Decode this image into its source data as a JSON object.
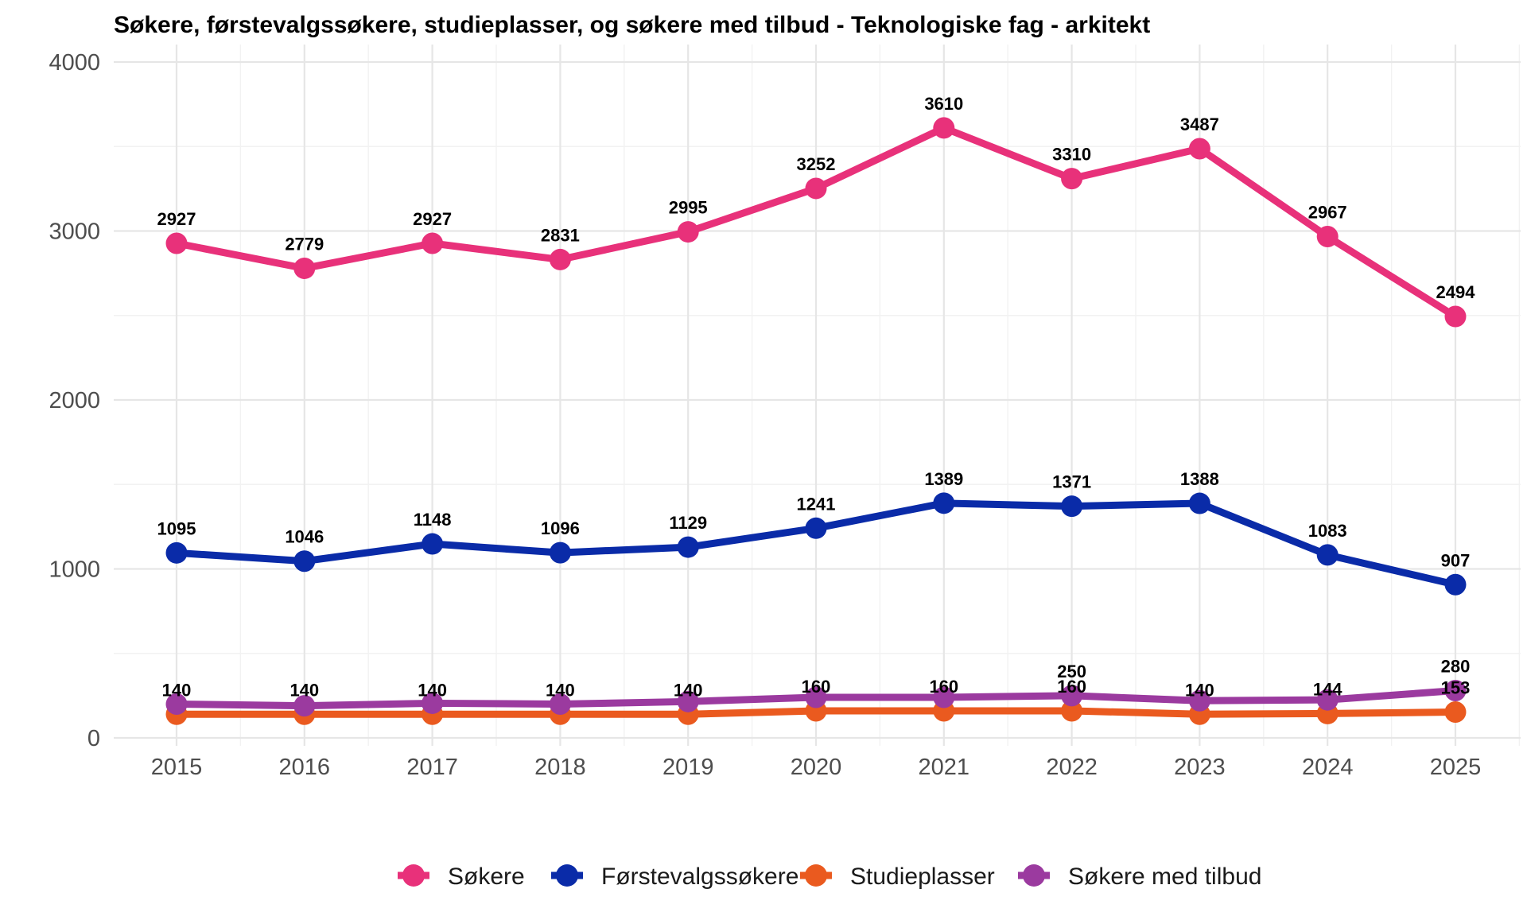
{
  "chart_data": {
    "type": "line",
    "title": "Søkere, førstevalgssøkere, studieplasser, og søkere med tilbud - Teknologiske fag - arkitekt",
    "xlabel": "",
    "ylabel": "",
    "x": [
      2015,
      2016,
      2017,
      2018,
      2019,
      2020,
      2021,
      2022,
      2023,
      2024,
      2025
    ],
    "x_tick_labels": [
      "2015",
      "2016",
      "2017",
      "2018",
      "2019",
      "2020",
      "2021",
      "2022",
      "2023",
      "2024",
      "2025"
    ],
    "ylim": [
      0,
      4000
    ],
    "y_ticks": [
      0,
      1000,
      2000,
      3000,
      4000
    ],
    "y_tick_labels": [
      "0",
      "1000",
      "2000",
      "3000",
      "4000"
    ],
    "grid": true,
    "legend_position": "bottom",
    "series": [
      {
        "name": "Søkere",
        "color": "#E8317A",
        "values": [
          2927,
          2779,
          2927,
          2831,
          2995,
          3252,
          3610,
          3310,
          3487,
          2967,
          2494
        ],
        "labels": [
          2927,
          2779,
          2927,
          2831,
          2995,
          3252,
          3610,
          3310,
          3487,
          2967,
          2494
        ]
      },
      {
        "name": "Førstevalgssøkere",
        "color": "#0A2BA8",
        "values": [
          1095,
          1046,
          1148,
          1096,
          1129,
          1241,
          1389,
          1371,
          1388,
          1083,
          907
        ],
        "labels": [
          1095,
          1046,
          1148,
          1096,
          1129,
          1241,
          1389,
          1371,
          1388,
          1083,
          907
        ]
      },
      {
        "name": "Studieplasser",
        "color": "#EA5A1F",
        "values": [
          140,
          140,
          140,
          140,
          140,
          160,
          160,
          160,
          140,
          144,
          153
        ],
        "labels": [
          140,
          140,
          140,
          140,
          140,
          160,
          160,
          160,
          140,
          144,
          153
        ]
      },
      {
        "name": "Søkere med tilbud",
        "color": "#9B3A9F",
        "values": [
          200,
          190,
          205,
          200,
          215,
          240,
          240,
          250,
          220,
          225,
          280
        ],
        "labels": [
          null,
          null,
          null,
          null,
          null,
          null,
          null,
          250,
          null,
          null,
          280
        ]
      }
    ]
  }
}
